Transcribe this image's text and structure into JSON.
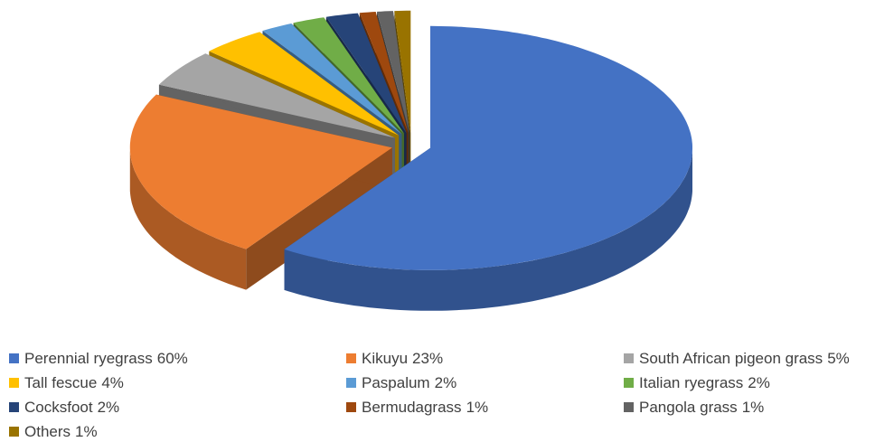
{
  "chart_data": {
    "type": "pie3d",
    "categories": [
      "Perennial ryegrass",
      "Kikuyu",
      "South African pigeon grass",
      "Tall fescue",
      "Paspalum",
      "Italian ryegrass",
      "Cocksfoot",
      "Bermudagrass",
      "Pangola grass",
      "Others"
    ],
    "values": [
      60,
      23,
      5,
      4,
      2,
      2,
      2,
      1,
      1,
      1
    ],
    "value_labels": [
      "60%",
      "23%",
      "5%",
      "4%",
      "2%",
      "2%",
      "2%",
      "1%",
      "1%",
      "1%"
    ],
    "colors": [
      "#4472c4",
      "#ed7d31",
      "#a5a5a5",
      "#ffc000",
      "#5b9bd5",
      "#70ad47",
      "#264478",
      "#9e480e",
      "#636363",
      "#997300"
    ],
    "legend": "bottom"
  }
}
